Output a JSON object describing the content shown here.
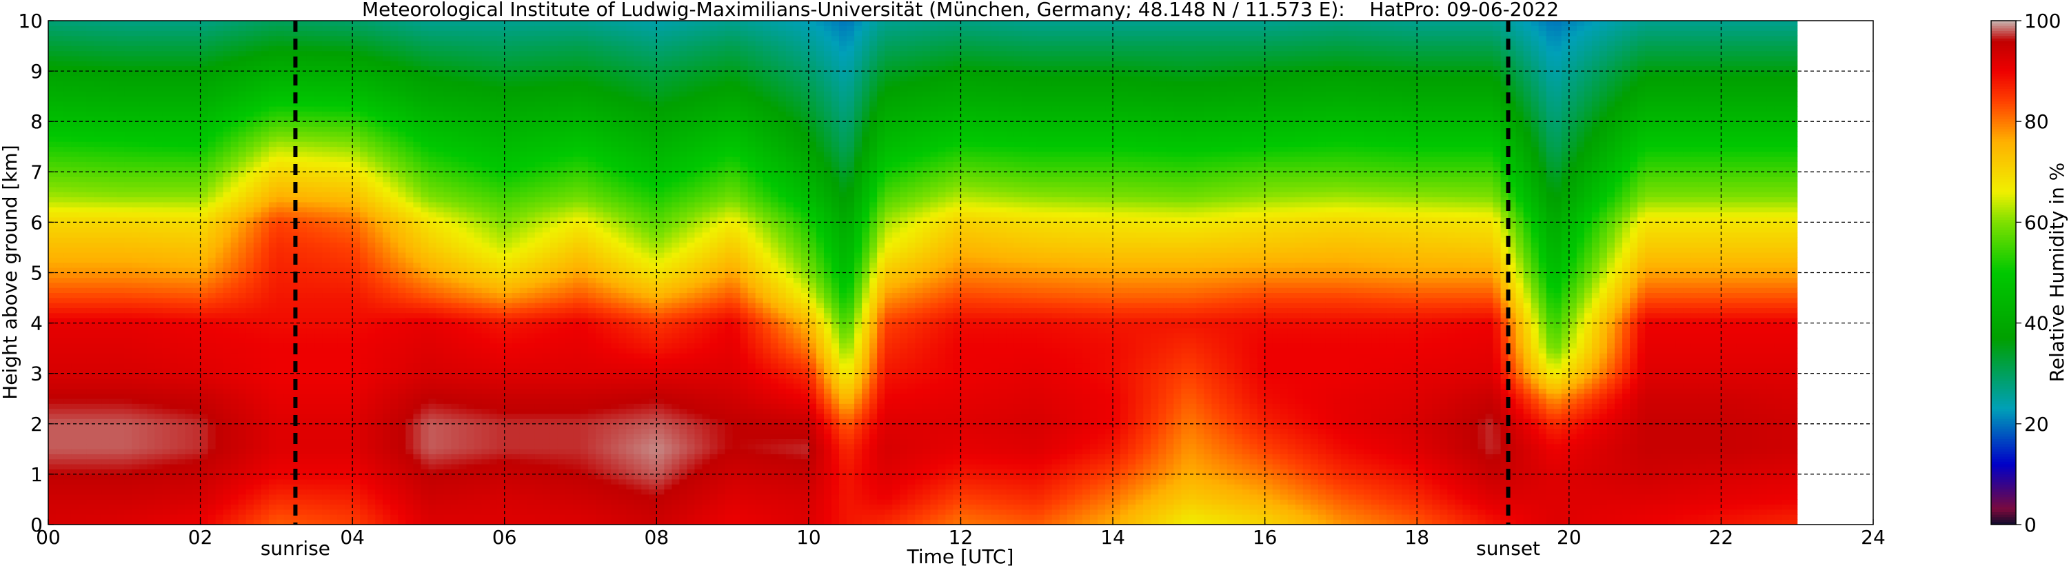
{
  "chart_data": {
    "type": "heatmap",
    "title": "Meteorological Institute of Ludwig-Maximilians-Universität (München, Germany; 48.148 N / 11.573 E):    HatPro: 09-06-2022",
    "xlabel": "Time [UTC]",
    "ylabel": "Height above ground [km]",
    "xlim": [
      0,
      24
    ],
    "ylim": [
      0,
      10
    ],
    "xticks": [
      "00",
      "02",
      "04",
      "06",
      "08",
      "10",
      "12",
      "14",
      "16",
      "18",
      "20",
      "22",
      "24"
    ],
    "yticks": [
      "0",
      "1",
      "2",
      "3",
      "4",
      "5",
      "6",
      "7",
      "8",
      "9",
      "10"
    ],
    "grid": true,
    "data_end_hour": 23.0,
    "sunrise": {
      "label": "sunrise",
      "hour": 3.25
    },
    "sunset": {
      "label": "sunset",
      "hour": 19.2
    },
    "colorbar": {
      "label": "Relative Humidity in %",
      "range": [
        0,
        100
      ],
      "ticks": [
        "0",
        "20",
        "40",
        "60",
        "80",
        "100"
      ],
      "stops": [
        {
          "value": 0,
          "color": "#0b0b2a"
        },
        {
          "value": 3,
          "color": "#7a0a3c"
        },
        {
          "value": 12,
          "color": "#0000c8"
        },
        {
          "value": 23,
          "color": "#00a0b8"
        },
        {
          "value": 37,
          "color": "#00a000"
        },
        {
          "value": 50,
          "color": "#00c800"
        },
        {
          "value": 60,
          "color": "#7ee000"
        },
        {
          "value": 66,
          "color": "#f0f000"
        },
        {
          "value": 76,
          "color": "#ffb000"
        },
        {
          "value": 84,
          "color": "#ff4000"
        },
        {
          "value": 90,
          "color": "#ee0000"
        },
        {
          "value": 96,
          "color": "#c00000"
        },
        {
          "value": 100,
          "color": "#c8b8b4"
        }
      ]
    },
    "humidity_profile": {
      "heights_km": [
        0,
        0.5,
        1,
        1.5,
        2,
        2.5,
        3,
        3.5,
        4,
        4.5,
        5,
        5.5,
        6,
        6.5,
        7,
        7.5,
        8,
        8.5,
        9,
        9.5,
        10
      ],
      "times_utc": [
        0,
        1,
        2,
        3,
        4,
        5,
        6,
        7,
        8,
        9,
        10,
        10.5,
        11,
        12,
        13,
        14,
        15,
        16,
        17,
        18,
        19,
        19.8,
        21,
        22,
        23
      ],
      "columns": [
        [
          93,
          94,
          96,
          98,
          98,
          96,
          93,
          92,
          91,
          84,
          78,
          74,
          70,
          62,
          57,
          52,
          47,
          42,
          38,
          33,
          28
        ],
        [
          92,
          94,
          96,
          98,
          98,
          96,
          93,
          92,
          91,
          84,
          78,
          74,
          70,
          61,
          56,
          51,
          46,
          41,
          37,
          32,
          27
        ],
        [
          90,
          93,
          95,
          97,
          97,
          95,
          92,
          91,
          90,
          83,
          77,
          73,
          69,
          61,
          56,
          50,
          46,
          41,
          37,
          32,
          27
        ],
        [
          82,
          86,
          90,
          92,
          92,
          91,
          90,
          90,
          89,
          88,
          87,
          86,
          84,
          76,
          70,
          63,
          55,
          48,
          42,
          36,
          30
        ],
        [
          84,
          87,
          90,
          92,
          92,
          91,
          90,
          90,
          89,
          88,
          86,
          84,
          81,
          74,
          68,
          61,
          54,
          47,
          41,
          35,
          29
        ],
        [
          92,
          94,
          96,
          98,
          98,
          96,
          93,
          92,
          91,
          83,
          77,
          72,
          68,
          60,
          55,
          50,
          45,
          40,
          36,
          31,
          26
        ],
        [
          92,
          93,
          95,
          97,
          97,
          95,
          92,
          90,
          88,
          78,
          70,
          64,
          60,
          55,
          50,
          46,
          42,
          38,
          34,
          30,
          26
        ],
        [
          92,
          94,
          96,
          97,
          97,
          95,
          92,
          91,
          90,
          83,
          77,
          72,
          67,
          59,
          54,
          49,
          44,
          39,
          35,
          31,
          26
        ],
        [
          94,
          96,
          98,
          99,
          98,
          96,
          92,
          88,
          85,
          76,
          68,
          62,
          57,
          52,
          47,
          43,
          39,
          35,
          32,
          28,
          24
        ],
        [
          90,
          92,
          94,
          96,
          96,
          94,
          92,
          91,
          90,
          83,
          77,
          72,
          67,
          59,
          54,
          49,
          44,
          39,
          35,
          31,
          26
        ],
        [
          92,
          93,
          95,
          97,
          95,
          90,
          86,
          80,
          75,
          66,
          60,
          56,
          52,
          46,
          42,
          38,
          35,
          32,
          29,
          26,
          23
        ],
        [
          88,
          88,
          88,
          86,
          82,
          74,
          66,
          60,
          55,
          50,
          46,
          43,
          40,
          36,
          33,
          30,
          28,
          26,
          24,
          22,
          20
        ],
        [
          86,
          90,
          92,
          93,
          92,
          90,
          88,
          86,
          84,
          78,
          72,
          66,
          62,
          56,
          51,
          46,
          42,
          38,
          34,
          30,
          26
        ],
        [
          80,
          84,
          88,
          91,
          92,
          91,
          90,
          90,
          89,
          84,
          79,
          75,
          71,
          63,
          57,
          51,
          46,
          41,
          37,
          32,
          27
        ],
        [
          82,
          86,
          89,
          92,
          93,
          92,
          91,
          90,
          89,
          83,
          78,
          73,
          69,
          61,
          55,
          50,
          45,
          40,
          36,
          31,
          26
        ],
        [
          76,
          80,
          84,
          88,
          90,
          90,
          89,
          89,
          88,
          82,
          77,
          72,
          68,
          60,
          55,
          50,
          45,
          40,
          36,
          31,
          26
        ],
        [
          66,
          72,
          76,
          78,
          80,
          82,
          84,
          86,
          88,
          82,
          77,
          72,
          67,
          59,
          54,
          49,
          44,
          39,
          35,
          31,
          26
        ],
        [
          70,
          76,
          80,
          84,
          87,
          89,
          90,
          90,
          89,
          84,
          78,
          73,
          69,
          61,
          56,
          50,
          45,
          40,
          36,
          31,
          26
        ],
        [
          78,
          82,
          86,
          89,
          91,
          91,
          90,
          90,
          89,
          84,
          78,
          74,
          70,
          62,
          56,
          51,
          46,
          41,
          37,
          32,
          27
        ],
        [
          82,
          86,
          89,
          92,
          93,
          92,
          91,
          90,
          89,
          83,
          77,
          73,
          69,
          61,
          55,
          50,
          45,
          40,
          36,
          31,
          26
        ],
        [
          88,
          92,
          95,
          97,
          97,
          95,
          92,
          91,
          90,
          83,
          77,
          72,
          68,
          60,
          55,
          50,
          45,
          40,
          36,
          31,
          26
        ],
        [
          92,
          92,
          92,
          90,
          86,
          78,
          66,
          58,
          54,
          50,
          46,
          43,
          40,
          36,
          33,
          30,
          28,
          26,
          24,
          22,
          20
        ],
        [
          90,
          92,
          94,
          95,
          95,
          94,
          92,
          91,
          90,
          83,
          77,
          72,
          68,
          60,
          55,
          50,
          45,
          40,
          36,
          31,
          26
        ],
        [
          88,
          91,
          93,
          95,
          95,
          94,
          92,
          91,
          90,
          83,
          77,
          72,
          68,
          60,
          55,
          50,
          45,
          40,
          36,
          31,
          26
        ],
        [
          86,
          90,
          92,
          94,
          94,
          93,
          92,
          91,
          90,
          83,
          77,
          72,
          68,
          60,
          55,
          50,
          45,
          40,
          36,
          31,
          26
        ]
      ]
    }
  }
}
